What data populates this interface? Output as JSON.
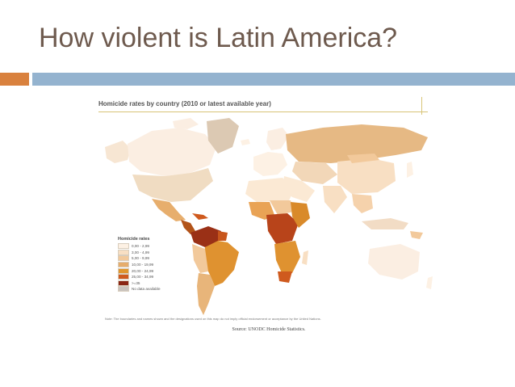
{
  "slide": {
    "title": "How violent is Latin America?"
  },
  "map": {
    "title": "Homicide rates by country (2010 or latest available year)",
    "note": "Note: The boundaries and names shown and the designations used on this map do not imply official endorsement or acceptance by the United Nations.",
    "source": "Source: UNODC Homicide Statistics.",
    "legend": {
      "title": "Homicide rates",
      "items": [
        {
          "label": "0,00 - 2,99",
          "color": "#fdf1e4"
        },
        {
          "label": "3,00 - 4,99",
          "color": "#f8dfc3"
        },
        {
          "label": "5,00 - 9,99",
          "color": "#f2c99b"
        },
        {
          "label": "10,00 - 19,99",
          "color": "#e6ad6c"
        },
        {
          "label": "20,00 - 24,99",
          "color": "#e0962e"
        },
        {
          "label": "25,00 - 34,99",
          "color": "#cf5a1e"
        },
        {
          "label": ">=35",
          "color": "#8a2614"
        },
        {
          "label": "No data available",
          "color": "#c9c3be"
        }
      ]
    }
  },
  "colors": {
    "title_text": "#6e5a4e",
    "accent_bar": "#d9813e",
    "main_bar": "#94b3cf",
    "figure_rule": "#d8c477"
  }
}
